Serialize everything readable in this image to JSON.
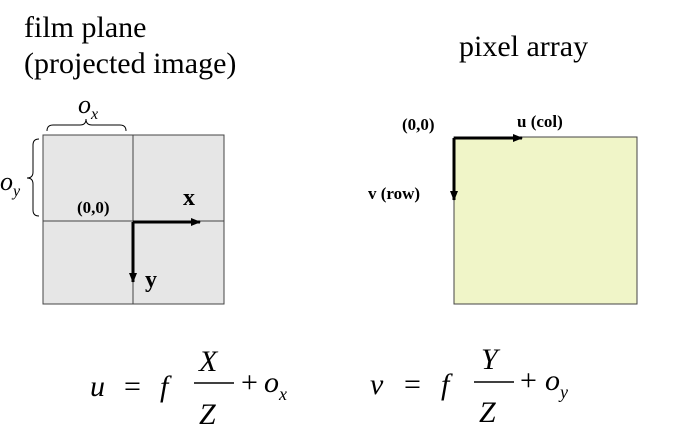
{
  "left_panel": {
    "title_line1": "film plane",
    "title_line2": "(projected image)",
    "ox_label": "o",
    "ox_sub": "x",
    "oy_label": "o",
    "oy_sub": "y",
    "origin_label": "(0,0)",
    "x_axis_label": "x",
    "y_axis_label": "y",
    "fill_color": "#e6e6e6"
  },
  "right_panel": {
    "title": "pixel array",
    "origin_label": "(0,0)",
    "u_axis_label": "u (col)",
    "v_axis_label": "v (row)",
    "fill_color": "#f0f5c8"
  },
  "equations": {
    "u": {
      "lhs": "u",
      "eq": "=",
      "f": "f",
      "num": "X",
      "den": "Z",
      "plus": "+",
      "offset": "o",
      "offset_sub": "x"
    },
    "v": {
      "lhs": "v",
      "eq": "=",
      "f": "f",
      "num": "Y",
      "den": "Z",
      "plus": "+",
      "offset": "o",
      "offset_sub": "y"
    }
  }
}
